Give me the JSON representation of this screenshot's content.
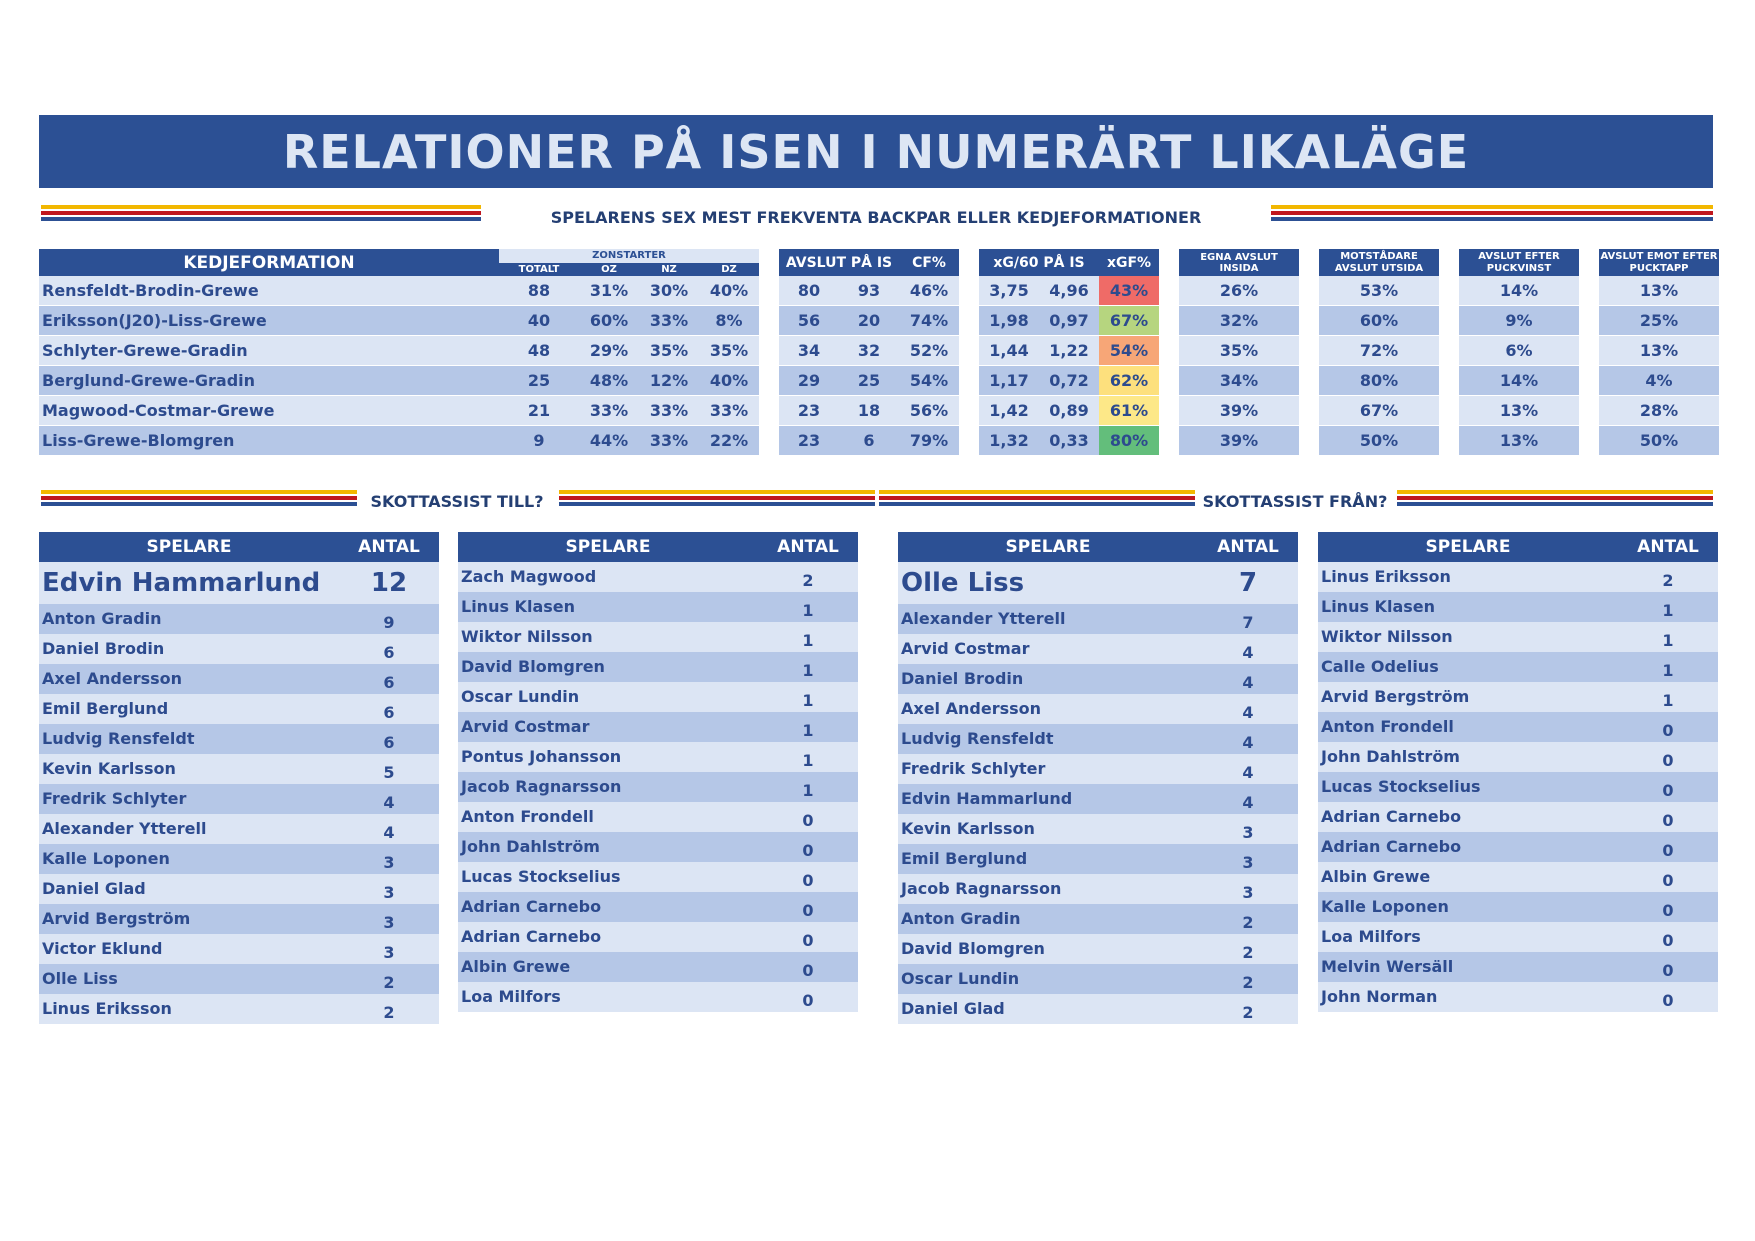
{
  "title": "RELATIONER PÅ ISEN I NUMERÄRT LIKALÄGE",
  "subtitle": "SPELARENS SEX MEST FREKVENTA BACKPAR ELLER KEDJEFORMATIONER",
  "headers": {
    "kedjeformation": "KEDJEFORMATION",
    "zonstarter": "ZONSTARTER",
    "totalt": "TOTALT",
    "oz": "OZ",
    "nz": "NZ",
    "dz": "DZ",
    "avslut": "AVSLUT PÅ IS",
    "cf": "CF%",
    "xg60": "xG/60 PÅ IS",
    "xgf": "xGF%",
    "egna": "EGNA AVSLUT INSIDA",
    "motst": "MOTSTÅDARE AVSLUT UTSIDA",
    "efter": "AVSLUT EFTER PUCKVINST",
    "emot": "AVSLUT EMOT EFTER PUCKTAPP"
  },
  "formations": [
    {
      "name": "Rensfeldt-Brodin-Grewe",
      "totalt": "88",
      "oz": "31%",
      "nz": "30%",
      "dz": "40%",
      "af": "80",
      "aa": "93",
      "cf": "46%",
      "xgf60": "3,75",
      "xga60": "4,96",
      "xgf": "43%",
      "xgf_color": "#ef6b67",
      "egna": "26%",
      "motst": "53%",
      "efter": "14%",
      "emot": "13%"
    },
    {
      "name": "Eriksson(J20)-Liss-Grewe",
      "totalt": "40",
      "oz": "60%",
      "nz": "33%",
      "dz": "8%",
      "af": "56",
      "aa": "20",
      "cf": "74%",
      "xgf60": "1,98",
      "xga60": "0,97",
      "xgf": "67%",
      "xgf_color": "#b6d57f",
      "egna": "32%",
      "motst": "60%",
      "efter": "9%",
      "emot": "25%"
    },
    {
      "name": "Schlyter-Grewe-Gradin",
      "totalt": "48",
      "oz": "29%",
      "nz": "35%",
      "dz": "35%",
      "af": "34",
      "aa": "32",
      "cf": "52%",
      "xgf60": "1,44",
      "xga60": "1,22",
      "xgf": "54%",
      "xgf_color": "#f7a677",
      "egna": "35%",
      "motst": "72%",
      "efter": "6%",
      "emot": "13%"
    },
    {
      "name": "Berglund-Grewe-Gradin",
      "totalt": "25",
      "oz": "48%",
      "nz": "12%",
      "dz": "40%",
      "af": "29",
      "aa": "25",
      "cf": "54%",
      "xgf60": "1,17",
      "xga60": "0,72",
      "xgf": "62%",
      "xgf_color": "#fde07d",
      "egna": "34%",
      "motst": "80%",
      "efter": "14%",
      "emot": "4%"
    },
    {
      "name": "Magwood-Costmar-Grewe",
      "totalt": "21",
      "oz": "33%",
      "nz": "33%",
      "dz": "33%",
      "af": "23",
      "aa": "18",
      "cf": "56%",
      "xgf60": "1,42",
      "xga60": "0,89",
      "xgf": "61%",
      "xgf_color": "#fde888",
      "egna": "39%",
      "motst": "67%",
      "efter": "13%",
      "emot": "28%"
    },
    {
      "name": "Liss-Grewe-Blomgren",
      "totalt": "9",
      "oz": "44%",
      "nz": "33%",
      "dz": "22%",
      "af": "23",
      "aa": "6",
      "cf": "79%",
      "xgf60": "1,32",
      "xga60": "0,33",
      "xgf": "80%",
      "xgf_color": "#63be7b",
      "egna": "39%",
      "motst": "50%",
      "efter": "13%",
      "emot": "50%"
    }
  ],
  "assist_to_label": "SKOTTASSIST TILL?",
  "assist_from_label": "SKOTTASSIST FRÅN?",
  "col_spelare": "SPELARE",
  "col_antal": "ANTAL",
  "assist_to_1": [
    {
      "name": "Edvin Hammarlund",
      "count": "12"
    },
    {
      "name": "Anton Gradin",
      "count": "9"
    },
    {
      "name": "Daniel Brodin",
      "count": "6"
    },
    {
      "name": "Axel Andersson",
      "count": "6"
    },
    {
      "name": "Emil Berglund",
      "count": "6"
    },
    {
      "name": "Ludvig Rensfeldt",
      "count": "6"
    },
    {
      "name": "Kevin Karlsson",
      "count": "5"
    },
    {
      "name": "Fredrik Schlyter",
      "count": "4"
    },
    {
      "name": "Alexander Ytterell",
      "count": "4"
    },
    {
      "name": "Kalle Loponen",
      "count": "3"
    },
    {
      "name": "Daniel Glad",
      "count": "3"
    },
    {
      "name": "Arvid Bergström",
      "count": "3"
    },
    {
      "name": "Victor Eklund",
      "count": "3"
    },
    {
      "name": "Olle Liss",
      "count": "2"
    },
    {
      "name": "Linus Eriksson",
      "count": "2"
    }
  ],
  "assist_to_2": [
    {
      "name": "Zach Magwood",
      "count": "2"
    },
    {
      "name": "Linus Klasen",
      "count": "1"
    },
    {
      "name": "Wiktor Nilsson",
      "count": "1"
    },
    {
      "name": "David Blomgren",
      "count": "1"
    },
    {
      "name": "Oscar Lundin",
      "count": "1"
    },
    {
      "name": "Arvid Costmar",
      "count": "1"
    },
    {
      "name": "Pontus Johansson",
      "count": "1"
    },
    {
      "name": "Jacob Ragnarsson",
      "count": "1"
    },
    {
      "name": "Anton Frondell",
      "count": "0"
    },
    {
      "name": "John Dahlström",
      "count": "0"
    },
    {
      "name": "Lucas Stockselius",
      "count": "0"
    },
    {
      "name": "Adrian Carnebo",
      "count": "0"
    },
    {
      "name": "Adrian Carnebo",
      "count": "0"
    },
    {
      "name": "Albin Grewe",
      "count": "0"
    },
    {
      "name": "Loa Milfors",
      "count": "0"
    }
  ],
  "assist_from_1": [
    {
      "name": "Olle Liss",
      "count": "7"
    },
    {
      "name": "Alexander Ytterell",
      "count": "7"
    },
    {
      "name": "Arvid Costmar",
      "count": "4"
    },
    {
      "name": "Daniel Brodin",
      "count": "4"
    },
    {
      "name": "Axel Andersson",
      "count": "4"
    },
    {
      "name": "Ludvig Rensfeldt",
      "count": "4"
    },
    {
      "name": "Fredrik Schlyter",
      "count": "4"
    },
    {
      "name": "Edvin Hammarlund",
      "count": "4"
    },
    {
      "name": "Kevin Karlsson",
      "count": "3"
    },
    {
      "name": "Emil Berglund",
      "count": "3"
    },
    {
      "name": "Jacob Ragnarsson",
      "count": "3"
    },
    {
      "name": "Anton Gradin",
      "count": "2"
    },
    {
      "name": "David Blomgren",
      "count": "2"
    },
    {
      "name": "Oscar Lundin",
      "count": "2"
    },
    {
      "name": "Daniel Glad",
      "count": "2"
    }
  ],
  "assist_from_2": [
    {
      "name": "Linus Eriksson",
      "count": "2"
    },
    {
      "name": "Linus Klasen",
      "count": "1"
    },
    {
      "name": "Wiktor Nilsson",
      "count": "1"
    },
    {
      "name": "Calle Odelius",
      "count": "1"
    },
    {
      "name": "Arvid Bergström",
      "count": "1"
    },
    {
      "name": "Anton Frondell",
      "count": "0"
    },
    {
      "name": "John Dahlström",
      "count": "0"
    },
    {
      "name": "Lucas Stockselius",
      "count": "0"
    },
    {
      "name": "Adrian Carnebo",
      "count": "0"
    },
    {
      "name": "Adrian Carnebo",
      "count": "0"
    },
    {
      "name": "Albin Grewe",
      "count": "0"
    },
    {
      "name": "Kalle Loponen",
      "count": "0"
    },
    {
      "name": "Loa Milfors",
      "count": "0"
    },
    {
      "name": "Melvin Wersäll",
      "count": "0"
    },
    {
      "name": "John Norman",
      "count": "0"
    }
  ]
}
